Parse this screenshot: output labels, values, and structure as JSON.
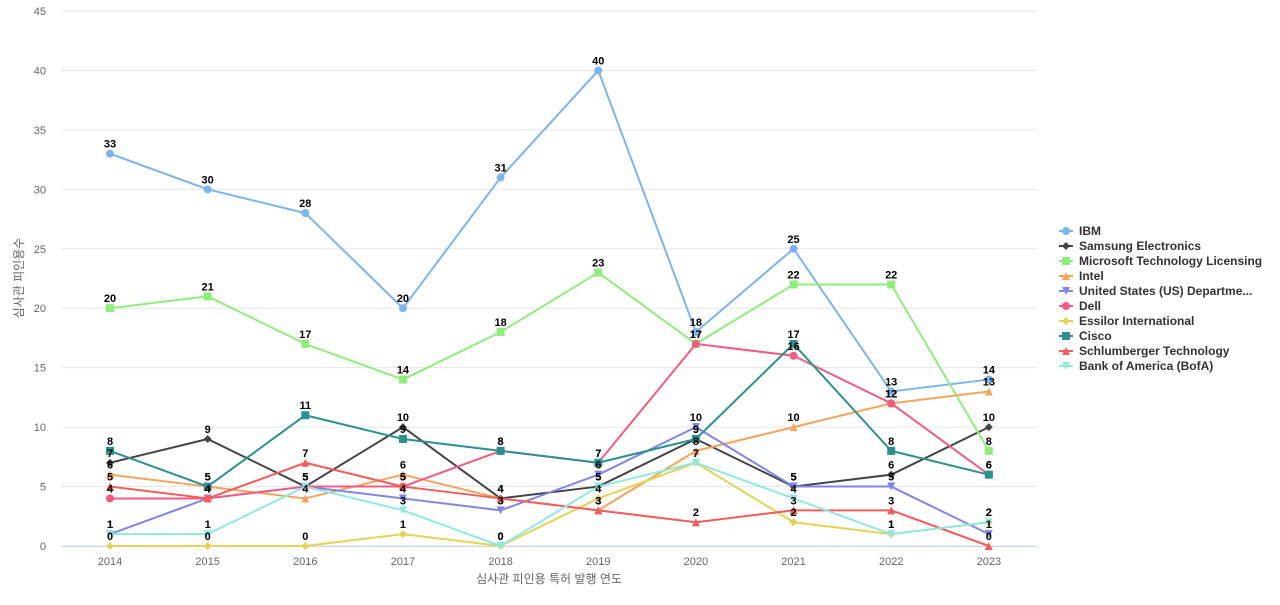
{
  "chart_data": {
    "type": "line",
    "title": "",
    "xlabel": "심사관 피인용 특허 발행 연도",
    "ylabel": "심사관 피인용수",
    "x": [
      "2014",
      "2015",
      "2016",
      "2017",
      "2018",
      "2019",
      "2020",
      "2021",
      "2022",
      "2023"
    ],
    "ylim": [
      0,
      45
    ],
    "yticks": [
      0,
      5,
      10,
      15,
      20,
      25,
      30,
      35,
      40,
      45
    ],
    "grid": true,
    "legend_position": "right",
    "series": [
      {
        "name": "IBM",
        "color": "#7cb5ec",
        "marker": "circle",
        "values": [
          33,
          30,
          28,
          20,
          31,
          40,
          18,
          25,
          13,
          14
        ]
      },
      {
        "name": "Samsung Electronics",
        "color": "#434348",
        "marker": "diamond",
        "values": [
          7,
          9,
          5,
          10,
          4,
          5,
          9,
          5,
          6,
          10
        ]
      },
      {
        "name": "Microsoft Technology Licensing",
        "color": "#90ed7d",
        "marker": "square",
        "values": [
          20,
          21,
          17,
          14,
          18,
          23,
          17,
          22,
          22,
          8
        ]
      },
      {
        "name": "Intel",
        "color": "#f7a35c",
        "marker": "triangle",
        "values": [
          6,
          5,
          4,
          6,
          4,
          3,
          8,
          10,
          12,
          13
        ]
      },
      {
        "name": "United States (US) Departme...",
        "color": "#8085e9",
        "marker": "triangle-down",
        "values": [
          1,
          4,
          5,
          4,
          3,
          6,
          10,
          5,
          5,
          1
        ]
      },
      {
        "name": "Dell",
        "color": "#f15c80",
        "marker": "circle",
        "values": [
          4,
          4,
          5,
          5,
          8,
          7,
          17,
          16,
          12,
          6
        ]
      },
      {
        "name": "Essilor International",
        "color": "#e4d354",
        "marker": "diamond",
        "values": [
          0,
          0,
          0,
          1,
          0,
          4,
          7,
          2,
          1,
          2
        ]
      },
      {
        "name": "Cisco",
        "color": "#2b908f",
        "marker": "square",
        "values": [
          8,
          5,
          11,
          9,
          8,
          7,
          9,
          17,
          8,
          6
        ]
      },
      {
        "name": "Schlumberger Technology",
        "color": "#f45b5b",
        "marker": "triangle",
        "values": [
          5,
          4,
          7,
          5,
          4,
          3,
          2,
          3,
          3,
          0
        ]
      },
      {
        "name": "Bank of America (BofA)",
        "color": "#91e8e1",
        "marker": "triangle-down",
        "values": [
          1,
          1,
          5,
          3,
          0,
          5,
          7,
          4,
          1,
          2
        ]
      }
    ]
  }
}
